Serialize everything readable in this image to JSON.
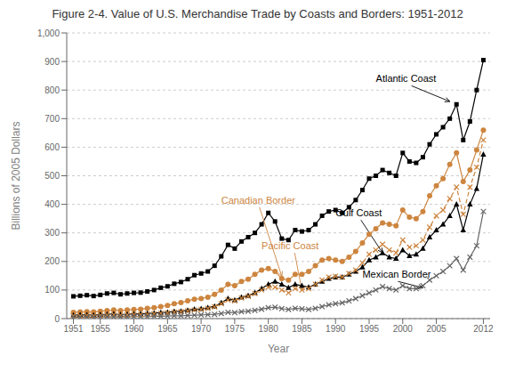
{
  "chart_data": {
    "type": "line",
    "title": "Figure 2-4. Value of U.S. Merchandise Trade by Coasts and Borders: 1951-2012",
    "xlabel": "Year",
    "ylabel": "Billions of 2005 Dollars",
    "x": [
      1951,
      1952,
      1953,
      1954,
      1955,
      1956,
      1957,
      1958,
      1959,
      1960,
      1961,
      1962,
      1963,
      1964,
      1965,
      1966,
      1967,
      1968,
      1969,
      1970,
      1971,
      1972,
      1973,
      1974,
      1975,
      1976,
      1977,
      1978,
      1979,
      1980,
      1981,
      1982,
      1983,
      1984,
      1985,
      1986,
      1987,
      1988,
      1989,
      1990,
      1991,
      1992,
      1993,
      1994,
      1995,
      1996,
      1997,
      1998,
      1999,
      2000,
      2001,
      2002,
      2003,
      2004,
      2005,
      2006,
      2007,
      2008,
      2009,
      2010,
      2011,
      2012
    ],
    "xlim": [
      1950,
      2013
    ],
    "xticks": [
      1951,
      1955,
      1960,
      1965,
      1970,
      1975,
      1980,
      1985,
      1990,
      1995,
      2000,
      2005,
      2012
    ],
    "ylim": [
      0,
      1000
    ],
    "yticks": [
      0,
      100,
      200,
      300,
      400,
      500,
      600,
      700,
      800,
      900,
      {
        "value": 1000,
        "label": "1,000"
      }
    ],
    "grid": true,
    "series": [
      {
        "name": "Atlantic Coast",
        "color": "#000000",
        "marker": "square",
        "line_style": "solid",
        "values": [
          78,
          80,
          82,
          79,
          83,
          88,
          90,
          85,
          88,
          90,
          91,
          95,
          100,
          108,
          113,
          122,
          128,
          138,
          152,
          158,
          165,
          185,
          218,
          258,
          245,
          270,
          285,
          300,
          330,
          370,
          340,
          280,
          275,
          310,
          305,
          310,
          330,
          360,
          375,
          380,
          370,
          390,
          415,
          450,
          490,
          500,
          520,
          510,
          500,
          580,
          550,
          545,
          565,
          610,
          645,
          670,
          700,
          750,
          625,
          690,
          800,
          905
        ]
      },
      {
        "name": "Canadian Border",
        "color": "#cd853f",
        "marker": "circle",
        "line_style": "solid",
        "values": [
          22,
          23,
          24,
          23,
          26,
          28,
          30,
          28,
          30,
          32,
          33,
          36,
          38,
          42,
          46,
          52,
          56,
          62,
          68,
          70,
          75,
          85,
          100,
          120,
          115,
          130,
          138,
          155,
          170,
          175,
          165,
          140,
          135,
          155,
          155,
          165,
          185,
          205,
          210,
          205,
          200,
          215,
          235,
          265,
          295,
          315,
          335,
          330,
          325,
          380,
          355,
          350,
          375,
          430,
          465,
          490,
          540,
          580,
          480,
          520,
          590,
          660
        ]
      },
      {
        "name": "Gulf Coast",
        "color": "#000000",
        "marker": "triangle",
        "line_style": "solid",
        "values": [
          12,
          13,
          13,
          12,
          14,
          15,
          16,
          14,
          15,
          16,
          16,
          18,
          19,
          21,
          22,
          25,
          26,
          29,
          33,
          34,
          38,
          43,
          55,
          70,
          65,
          75,
          80,
          90,
          105,
          120,
          130,
          120,
          108,
          120,
          115,
          110,
          120,
          130,
          140,
          145,
          145,
          155,
          165,
          180,
          205,
          215,
          230,
          215,
          210,
          240,
          220,
          225,
          245,
          285,
          310,
          330,
          360,
          400,
          310,
          400,
          455,
          575
        ]
      },
      {
        "name": "Pacific Coast",
        "color": "#cd853f",
        "marker": "x",
        "line_style": "dashed",
        "values": [
          10,
          10,
          11,
          10,
          11,
          13,
          14,
          12,
          13,
          14,
          14,
          16,
          17,
          19,
          20,
          23,
          24,
          27,
          30,
          32,
          36,
          41,
          52,
          65,
          62,
          72,
          78,
          88,
          100,
          110,
          110,
          100,
          90,
          105,
          100,
          105,
          120,
          135,
          145,
          148,
          145,
          158,
          170,
          195,
          225,
          240,
          260,
          240,
          230,
          275,
          250,
          255,
          275,
          320,
          360,
          380,
          420,
          460,
          365,
          460,
          530,
          625
        ]
      },
      {
        "name": "Mexican Border",
        "color": "#666666",
        "marker": "x",
        "line_style": "solid",
        "values": [
          5,
          5,
          5,
          5,
          6,
          6,
          6,
          6,
          6,
          7,
          7,
          7,
          8,
          8,
          9,
          10,
          10,
          11,
          12,
          13,
          14,
          15,
          18,
          22,
          21,
          24,
          26,
          29,
          33,
          38,
          40,
          35,
          32,
          36,
          34,
          32,
          36,
          42,
          48,
          52,
          55,
          62,
          70,
          80,
          90,
          100,
          112,
          105,
          100,
          115,
          105,
          105,
          115,
          135,
          150,
          165,
          185,
          210,
          170,
          215,
          255,
          375
        ]
      }
    ],
    "annotations": [
      {
        "text": "Atlantic Coast",
        "x": 2007,
        "y": 760,
        "text_x": 1996,
        "text_y": 840,
        "color": "#000000"
      },
      {
        "text": "Canadian Border",
        "x": 1982,
        "y": 148,
        "text_x": 1973,
        "text_y": 415,
        "color": "#cd853f"
      },
      {
        "text": "Gulf Coast",
        "x": 1997,
        "y": 230,
        "text_x": 1990,
        "text_y": 370,
        "color": "#000000"
      },
      {
        "text": "Pacific Coast",
        "x": 1985,
        "y": 98,
        "text_x": 1979,
        "text_y": 255,
        "color": "#cd853f"
      },
      {
        "text": "Mexican Border",
        "x": 2003,
        "y": 108,
        "text_x": 1994,
        "text_y": 155,
        "color": "#000000"
      }
    ]
  }
}
